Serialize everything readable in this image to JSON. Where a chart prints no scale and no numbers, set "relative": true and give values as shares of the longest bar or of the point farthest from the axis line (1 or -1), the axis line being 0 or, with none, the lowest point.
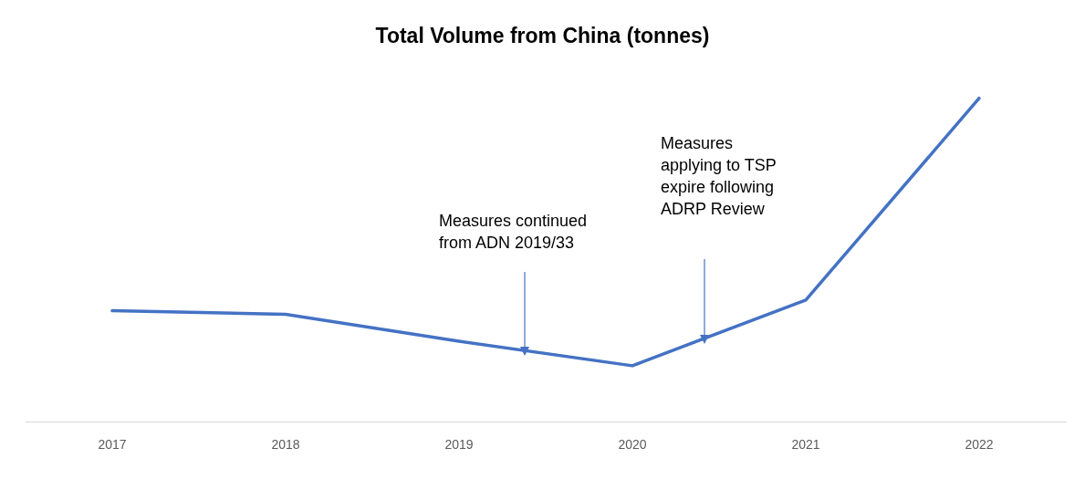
{
  "chart_data": {
    "type": "line",
    "title": "Total Volume from China (tonnes)",
    "relative": true,
    "categories": [
      "2017",
      "2018",
      "2019",
      "2020",
      "2021",
      "2022"
    ],
    "series": [
      {
        "color": "#4472c4",
        "values": [
          0.343,
          0.332,
          0.249,
          0.173,
          0.376,
          1
        ]
      }
    ],
    "annotations": [
      "Measures continued\nfrom ADN 2019/33",
      "Measures\napplying to TSP\nexpire following\nADRP Review"
    ],
    "grid": false,
    "legend": false,
    "marker": "none",
    "line_style": "solid"
  }
}
